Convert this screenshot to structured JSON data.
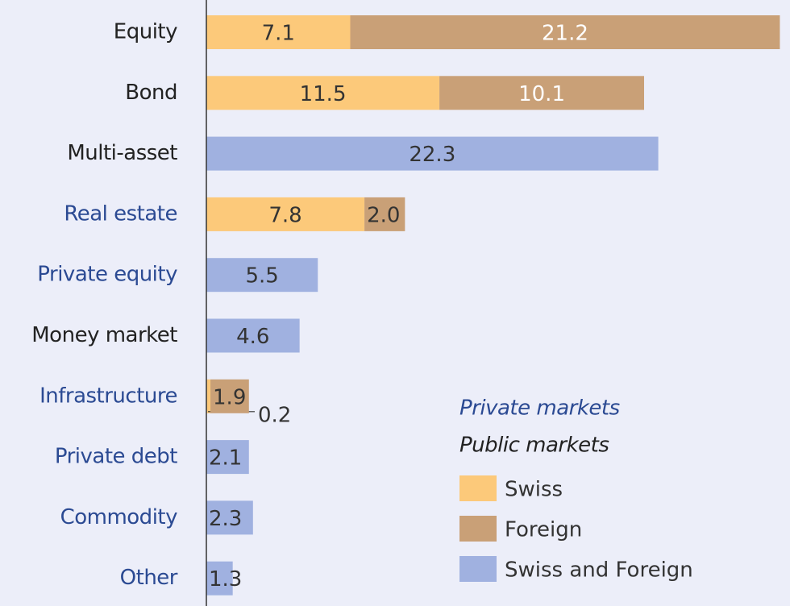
{
  "chart_data": {
    "type": "stacked_hbar",
    "categories": [
      "Equity",
      "Bond",
      "Multi-asset",
      "Real estate",
      "Private equity",
      "Money market",
      "Infrastructure",
      "Private debt",
      "Commodity",
      "Other"
    ],
    "series": [
      {
        "name": "Swiss",
        "color": "#fcc97a",
        "values": [
          7.1,
          11.5,
          null,
          7.8,
          null,
          null,
          0.2,
          null,
          null,
          null
        ],
        "value_labels": [
          "7.1",
          "11.5",
          null,
          "7.8",
          null,
          null,
          "0.2",
          null,
          null,
          null
        ]
      },
      {
        "name": "Foreign",
        "color": "#c9a077",
        "values": [
          21.2,
          10.1,
          null,
          2.0,
          null,
          null,
          1.9,
          null,
          null,
          null
        ],
        "value_labels": [
          "21.2",
          "10.1",
          null,
          "2.0",
          null,
          null,
          "1.9",
          null,
          null,
          null
        ]
      },
      {
        "name": "Swiss and Foreign",
        "color": "#a0b1e0",
        "values": [
          null,
          null,
          22.3,
          null,
          5.5,
          4.6,
          null,
          2.1,
          2.3,
          1.3
        ],
        "value_labels": [
          null,
          null,
          "22.3",
          null,
          "5.5",
          "4.6",
          null,
          "2.1",
          "2.3",
          "1.3"
        ]
      }
    ],
    "category_groups": [
      {
        "name": "Private markets",
        "color": "#2b4a93"
      },
      {
        "name": "Public markets",
        "color": "#222222"
      }
    ],
    "category_group": [
      1,
      1,
      1,
      0,
      0,
      1,
      0,
      0,
      0,
      0
    ],
    "xlim": [
      0,
      28.8
    ]
  }
}
